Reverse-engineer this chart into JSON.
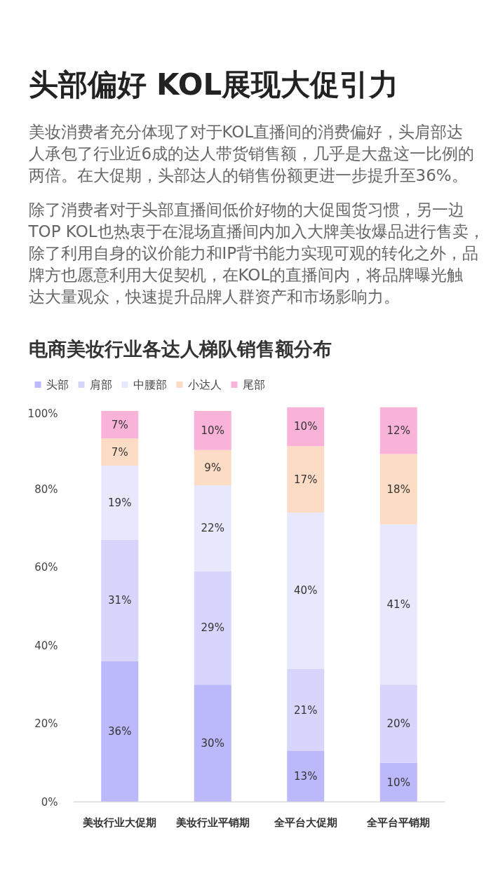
{
  "chart_data": {
    "type": "bar",
    "stacked": true,
    "title": "头部偏好  KOL展现大促引力",
    "subtitle": "电商美妆行业各达人梯队销售额分布",
    "annotations": [
      "美妆消费者充分体现了对于KOL直播间的消费偏好，头肩部达",
      "人承包了行业近6成的达人带货销售额，几乎是大盘这一比例的",
      "两倍。在大促期，头部达人的销售份额更进一步提升至36%。",
      "除了消费者对于头部直播间低价好物的大促囤货习惯，另一边",
      "TOP  KOL也热衷于在混场直播间内加入大牌美妆爆品进行售卖，",
      "除了利用自身的议价能力和IP背书能力实现可观的转化之外，品",
      "牌方也愿意利用大促契机，在KOL的直播间内，将品牌曝光触",
      "达大量观众，快速提升品牌人群资产和市场影响力。"
    ],
    "categories": [
      "美妆行业大促期",
      "美妆行业平销期",
      "全平台大促期",
      "全平台平销期"
    ],
    "series": [
      {
        "name": "头部",
        "color": "#bbb8fb",
        "values": [
          36,
          30,
          13,
          10
        ],
        "value_labels": [
          "36%",
          "30%",
          "13%",
          "10%"
        ]
      },
      {
        "name": "肩部",
        "color": "#d7d5fb",
        "values": [
          31,
          29,
          21,
          20
        ],
        "value_labels": [
          "31%",
          "29%",
          "21%",
          "20%"
        ]
      },
      {
        "name": "中腰部",
        "color": "#e8e8fc",
        "values": [
          19,
          22,
          40,
          41
        ],
        "value_labels": [
          "19%",
          "22%",
          "40%",
          "41%"
        ]
      },
      {
        "name": "小达人",
        "color": "#fddcc5",
        "values": [
          7,
          9,
          17,
          18
        ],
        "value_labels": [
          "7%",
          "9%",
          "17%",
          "18%"
        ]
      },
      {
        "name": "尾部",
        "color": "#f9b3d8",
        "values": [
          7,
          10,
          10,
          12
        ],
        "value_labels": [
          "7%",
          "10%",
          "10%",
          "12%"
        ]
      }
    ],
    "ylim": [
      0,
      101
    ],
    "yticks": [
      {
        "value": 0,
        "label": "0%"
      },
      {
        "value": 20,
        "label": "20%"
      },
      {
        "value": 40,
        "label": "40%"
      },
      {
        "value": 60,
        "label": "60%"
      },
      {
        "value": 80,
        "label": "80%"
      },
      {
        "value": 100,
        "label": "100%"
      }
    ],
    "legend": "top left",
    "grid": false
  }
}
